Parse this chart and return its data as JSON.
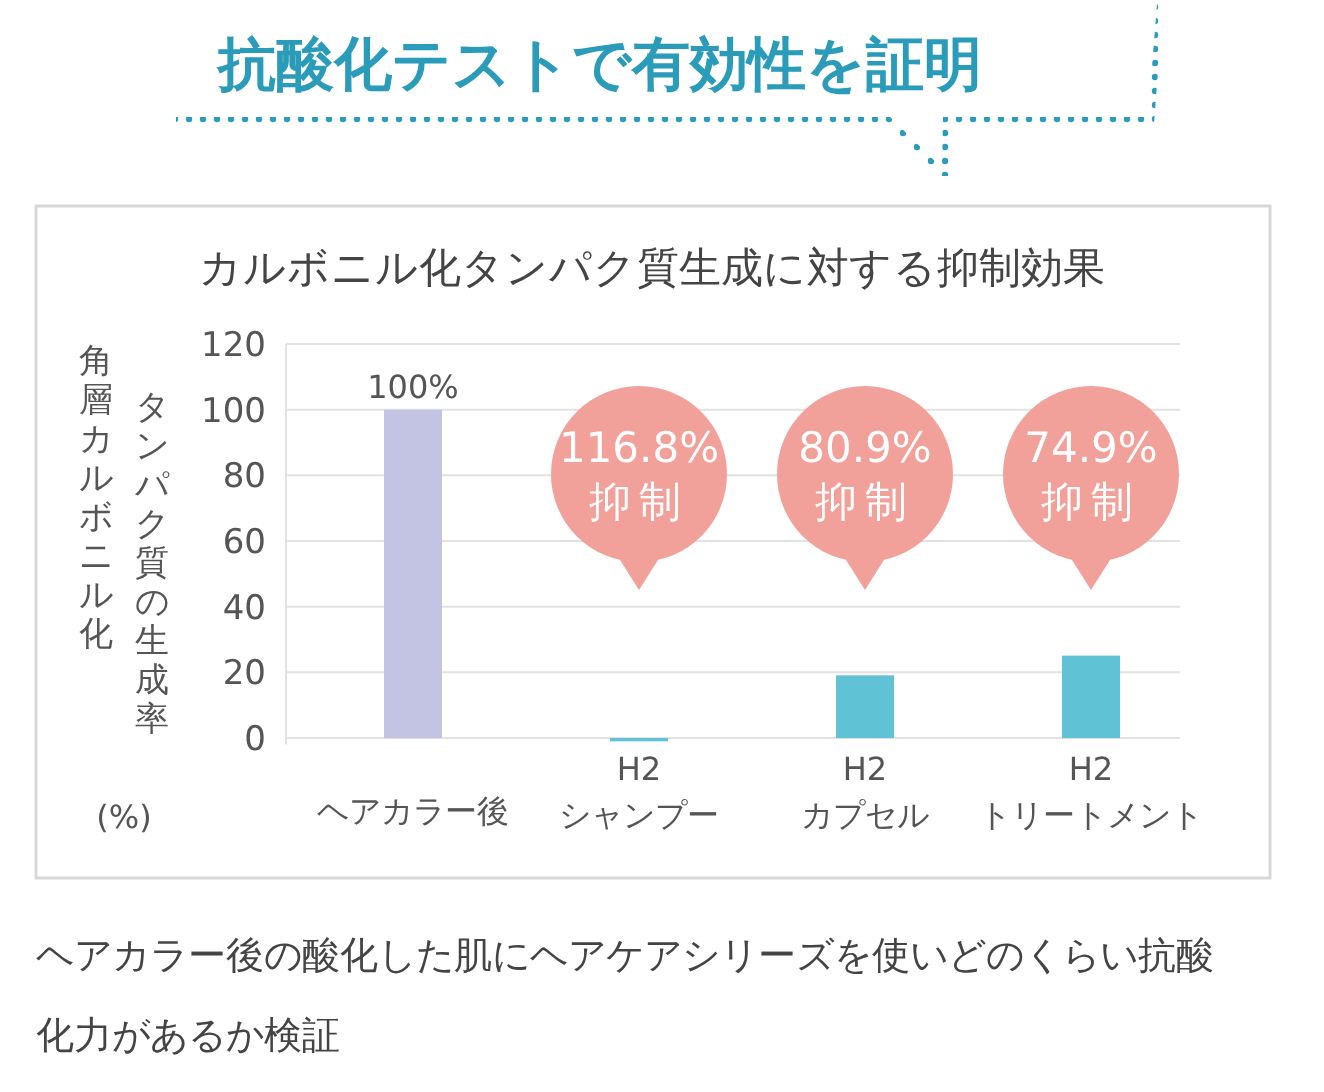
{
  "chart_data": {
    "type": "bar",
    "title": "抗酸化テストで有効性を証明",
    "subtitle": "カルボニル化タンパク質生成に対する抑制効果",
    "ylabel": "角層カルボニル化タンパク質の生成率(%)",
    "categories": [
      "ヘアカラー後",
      "H2\nシャンプー",
      "H2\nカプセル",
      "H2\nトリートメント"
    ],
    "values": [
      100,
      -1,
      19.1,
      25.1
    ],
    "colors": [
      "#c3c3e3",
      "#5fc3d5",
      "#5fc3d5",
      "#5fc3d5"
    ],
    "value_labels": [
      "100%",
      null,
      null,
      null
    ],
    "ylim": [
      -2,
      120
    ],
    "yticks": [
      0,
      20,
      40,
      60,
      80,
      100,
      120
    ],
    "grid": "y",
    "annotations": [
      null,
      "116.8%\n抑制",
      "80.9%\n抑制",
      "74.9%\n抑制",
      "ヘアカラー後の酸化した肌にヘアケアシリーズを使いどのくらい抗酸化力があるか検証"
    ]
  }
}
